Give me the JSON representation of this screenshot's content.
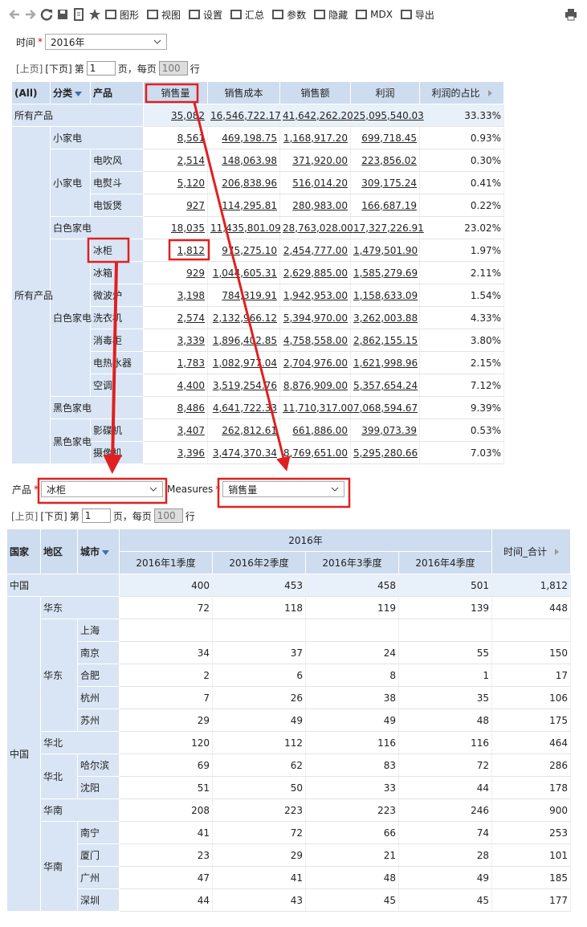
{
  "toolbar": {
    "items": [
      "图形",
      "视图",
      "设置",
      "汇总",
      "参数",
      "隐藏",
      "MDX",
      "导出"
    ]
  },
  "filter1": {
    "label": "时间",
    "required": "*",
    "value": "2016年"
  },
  "pager1": {
    "prev": "[上页]",
    "next": "[下页]",
    "page_prefix": "第",
    "page": "1",
    "per_page_prefix": "页，每页",
    "per_page": "100",
    "suffix": "行"
  },
  "table1": {
    "headers": [
      "(All)",
      "分类",
      "产品",
      "销售量",
      "销售成本",
      "销售额",
      "利润",
      "利润的占比"
    ],
    "total": {
      "label": "所有产品",
      "cells": [
        "35,082",
        "16,546,722.17",
        "41,642,262.20",
        "25,095,540.03",
        "33.33%"
      ]
    },
    "groups_label": "所有产品",
    "groups": [
      {
        "name": "小家电",
        "cells": [
          "8,561",
          "469,198.75",
          "1,168,917.20",
          "699,718.45",
          "0.93%"
        ],
        "sub_label": "小家电",
        "items": [
          {
            "name": "电吹风",
            "cells": [
              "2,514",
              "148,063.98",
              "371,920.00",
              "223,856.02",
              "0.30%"
            ]
          },
          {
            "name": "电熨斗",
            "cells": [
              "5,120",
              "206,838.96",
              "516,014.20",
              "309,175.24",
              "0.41%"
            ]
          },
          {
            "name": "电饭煲",
            "cells": [
              "927",
              "114,295.81",
              "280,983.00",
              "166,687.19",
              "0.22%"
            ]
          }
        ]
      },
      {
        "name": "白色家电",
        "cells": [
          "18,035",
          "11,435,801.09",
          "28,763,028.00",
          "17,327,226.91",
          "23.02%"
        ],
        "sub_label": "白色家电",
        "items": [
          {
            "name": "冰柜",
            "cells": [
              "1,812",
              "975,275.10",
              "2,454,777.00",
              "1,479,501.90",
              "1.97%"
            ]
          },
          {
            "name": "冰箱",
            "cells": [
              "929",
              "1,044,605.31",
              "2,629,885.00",
              "1,585,279.69",
              "2.11%"
            ]
          },
          {
            "name": "微波炉",
            "cells": [
              "3,198",
              "784,319.91",
              "1,942,953.00",
              "1,158,633.09",
              "1.54%"
            ]
          },
          {
            "name": "洗衣机",
            "cells": [
              "2,574",
              "2,132,966.12",
              "5,394,970.00",
              "3,262,003.88",
              "4.33%"
            ]
          },
          {
            "name": "消毒柜",
            "cells": [
              "3,339",
              "1,896,402.85",
              "4,758,558.00",
              "2,862,155.15",
              "3.80%"
            ]
          },
          {
            "name": "电热水器",
            "cells": [
              "1,783",
              "1,082,977.04",
              "2,704,976.00",
              "1,621,998.96",
              "2.15%"
            ]
          },
          {
            "name": "空调",
            "cells": [
              "4,400",
              "3,519,254.76",
              "8,876,909.00",
              "5,357,654.24",
              "7.12%"
            ]
          }
        ]
      },
      {
        "name": "黑色家电",
        "cells": [
          "8,486",
          "4,641,722.33",
          "11,710,317.00",
          "7,068,594.67",
          "9.39%"
        ],
        "sub_label": "黑色家电",
        "items": [
          {
            "name": "影碟机",
            "cells": [
              "3,407",
              "262,812.61",
              "661,886.00",
              "399,073.39",
              "0.53%"
            ]
          },
          {
            "name": "摄像机",
            "cells": [
              "3,396",
              "3,474,370.34",
              "8,769,651.00",
              "5,295,280.66",
              "7.03%"
            ]
          }
        ]
      }
    ]
  },
  "filter2": {
    "product_label": "产品",
    "product_required": "*",
    "product_value": "冰柜",
    "measures_label": "Measures",
    "measures_required": "*",
    "measures_value": "销售量"
  },
  "pager2": {
    "prev": "[上页]",
    "next": "[下页]",
    "page_prefix": "第",
    "page": "1",
    "per_page_prefix": "页，每页",
    "per_page": "100",
    "suffix": "行"
  },
  "table2": {
    "headers": [
      "国家",
      "地区",
      "城市"
    ],
    "year": "2016年",
    "quarters": [
      "2016年1季度",
      "2016年2季度",
      "2016年3季度",
      "2016年4季度"
    ],
    "total_header": "时间_合计",
    "total": {
      "label": "中国",
      "cells": [
        "400",
        "453",
        "458",
        "501",
        "1,812"
      ]
    },
    "groups_label": "中国",
    "groups": [
      {
        "name": "华东",
        "cells": [
          "72",
          "118",
          "119",
          "139",
          "448"
        ],
        "sub_label": "华东",
        "items": [
          {
            "name": "上海",
            "cells": null
          },
          {
            "name": "南京",
            "cells": [
              "34",
              "37",
              "24",
              "55",
              "150"
            ]
          },
          {
            "name": "合肥",
            "cells": [
              "2",
              "6",
              "8",
              "1",
              "17"
            ]
          },
          {
            "name": "杭州",
            "cells": [
              "7",
              "26",
              "38",
              "35",
              "106"
            ]
          },
          {
            "name": "苏州",
            "cells": [
              "29",
              "49",
              "49",
              "48",
              "175"
            ]
          }
        ]
      },
      {
        "name": "华北",
        "cells": [
          "120",
          "112",
          "116",
          "116",
          "464"
        ],
        "sub_label": "华北",
        "items": [
          {
            "name": "哈尔滨",
            "cells": [
              "69",
              "62",
              "83",
              "72",
              "286"
            ]
          },
          {
            "name": "沈阳",
            "cells": [
              "51",
              "50",
              "33",
              "44",
              "178"
            ]
          }
        ]
      },
      {
        "name": "华南",
        "cells": [
          "208",
          "223",
          "223",
          "246",
          "900"
        ],
        "sub_label": "华南",
        "items": [
          {
            "name": "南宁",
            "cells": [
              "41",
              "72",
              "66",
              "74",
              "253"
            ]
          },
          {
            "name": "厦门",
            "cells": [
              "23",
              "29",
              "21",
              "28",
              "101"
            ]
          },
          {
            "name": "广州",
            "cells": [
              "47",
              "41",
              "48",
              "49",
              "185"
            ]
          },
          {
            "name": "深圳",
            "cells": [
              "44",
              "43",
              "45",
              "45",
              "177"
            ]
          }
        ]
      }
    ]
  }
}
